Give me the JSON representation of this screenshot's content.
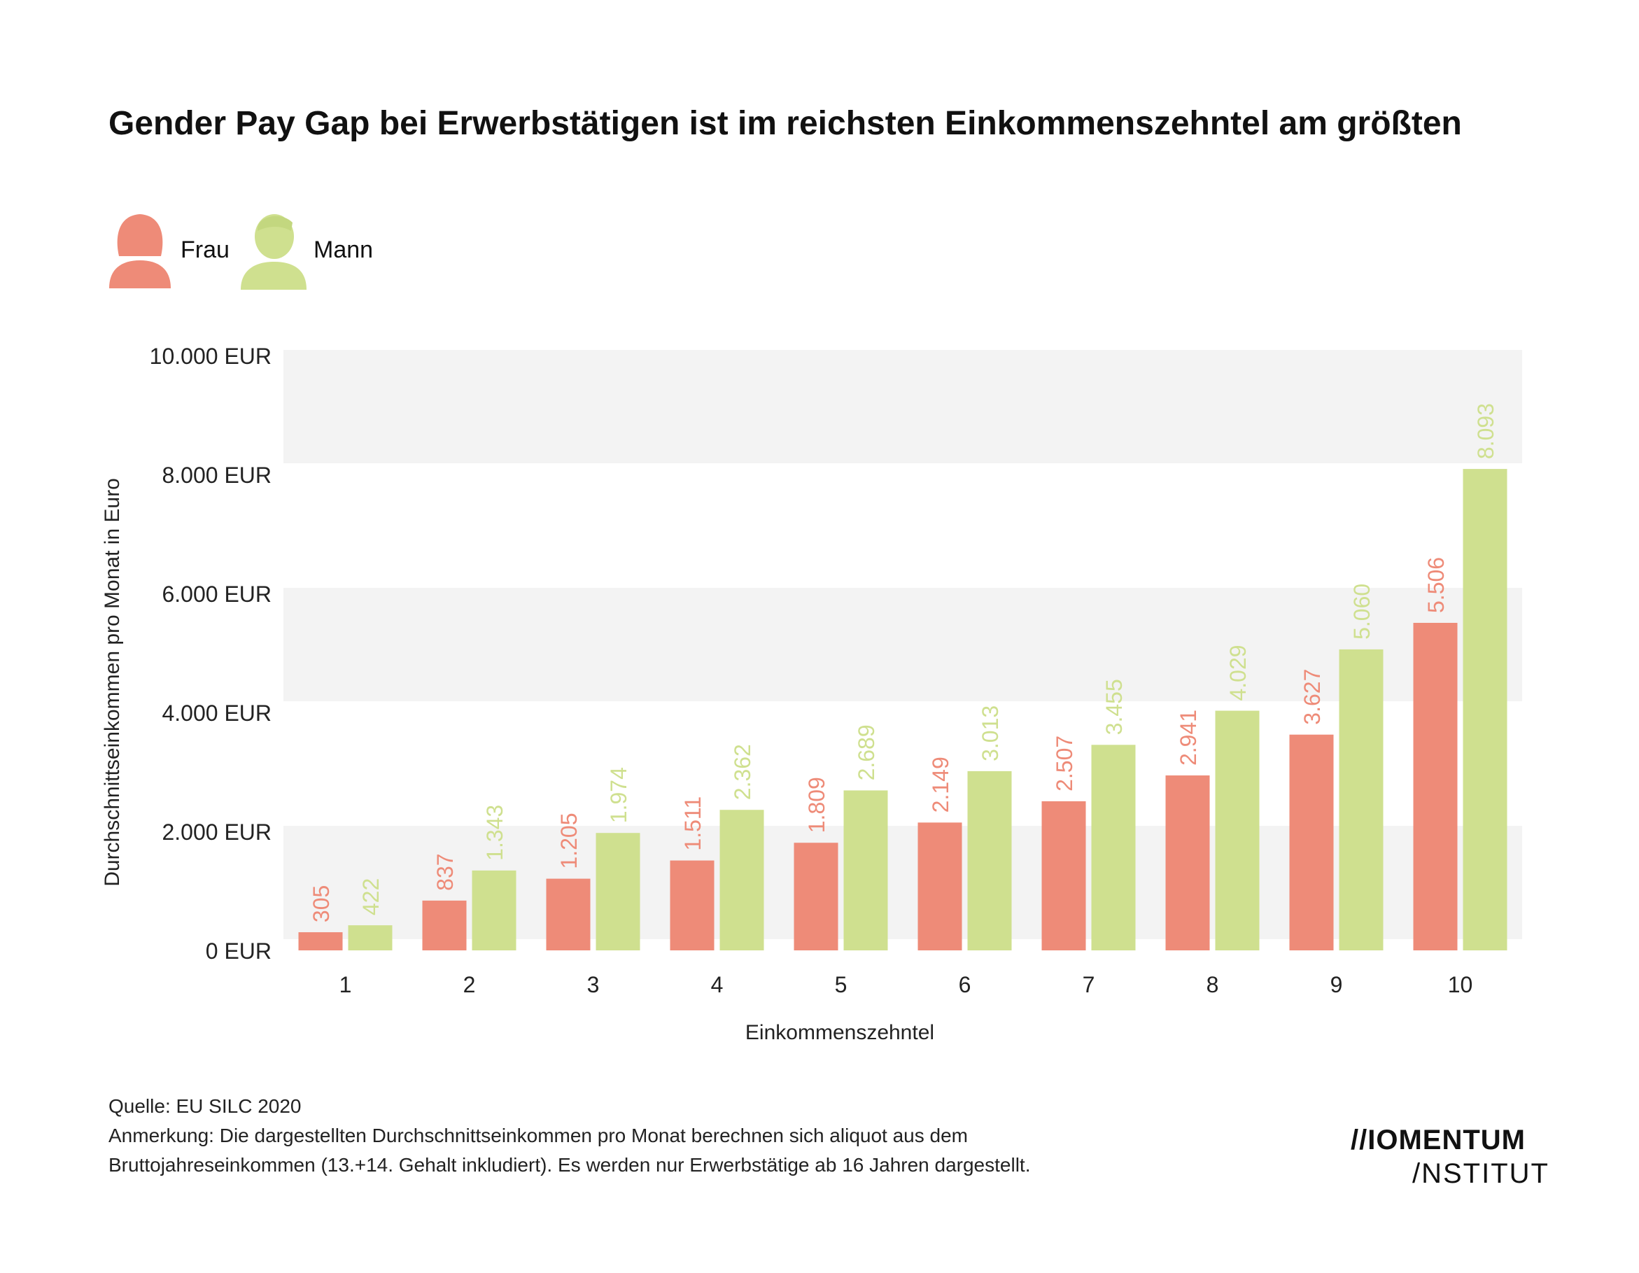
{
  "title": "Gender Pay Gap bei Erwerbstätigen ist im reichsten Einkommenszehntel am größten",
  "legend": [
    {
      "label": "Frau",
      "color": "#ee8b78",
      "icon": "woman-icon"
    },
    {
      "label": "Mann",
      "color": "#cfe08f",
      "icon": "man-icon"
    }
  ],
  "chart_data": {
    "type": "bar",
    "title": "Gender Pay Gap bei Erwerbstätigen ist im reichsten Einkommenszehntel am größten",
    "xlabel": "Einkommenszehntel",
    "ylabel": "Durchschnittseinkommen pro Monat in Euro",
    "categories": [
      "1",
      "2",
      "3",
      "4",
      "5",
      "6",
      "7",
      "8",
      "9",
      "10"
    ],
    "series": [
      {
        "name": "Frau",
        "color": "#ee8b78",
        "values": [
          305,
          837,
          1205,
          1511,
          1809,
          2149,
          2507,
          2941,
          3627,
          5506
        ],
        "labels": [
          "305",
          "837",
          "1.205",
          "1.511",
          "1.809",
          "2.149",
          "2.507",
          "2.941",
          "3.627",
          "5.506"
        ]
      },
      {
        "name": "Mann",
        "color": "#cfe08f",
        "values": [
          422,
          1343,
          1974,
          2362,
          2689,
          3013,
          3455,
          4029,
          5060,
          8093
        ],
        "labels": [
          "422",
          "1.343",
          "1.974",
          "2.362",
          "2.689",
          "3.013",
          "3.455",
          "4.029",
          "5.060",
          "8.093"
        ]
      }
    ],
    "ylim": [
      0,
      10000
    ],
    "yticks": [
      0,
      2000,
      4000,
      6000,
      8000,
      10000
    ],
    "ytick_labels": [
      "0 EUR",
      "2.000 EUR",
      "4.000 EUR",
      "6.000 EUR",
      "8.000 EUR",
      "10.000 EUR"
    ],
    "grid": "alternating horizontal bands"
  },
  "footer": {
    "source": "Quelle: EU SILC 2020",
    "note_line1": "Anmerkung: Die dargestellten Durchschnittseinkommen pro Monat berechnen sich aliquot aus dem",
    "note_line2": "Bruttojahreseinkommen (13.+14. Gehalt inkludiert). Es werden nur Erwerbstätige ab 16 Jahren dargestellt."
  },
  "logo": {
    "line1": "//IOMENTUM",
    "line2": "/NSTITUT"
  }
}
